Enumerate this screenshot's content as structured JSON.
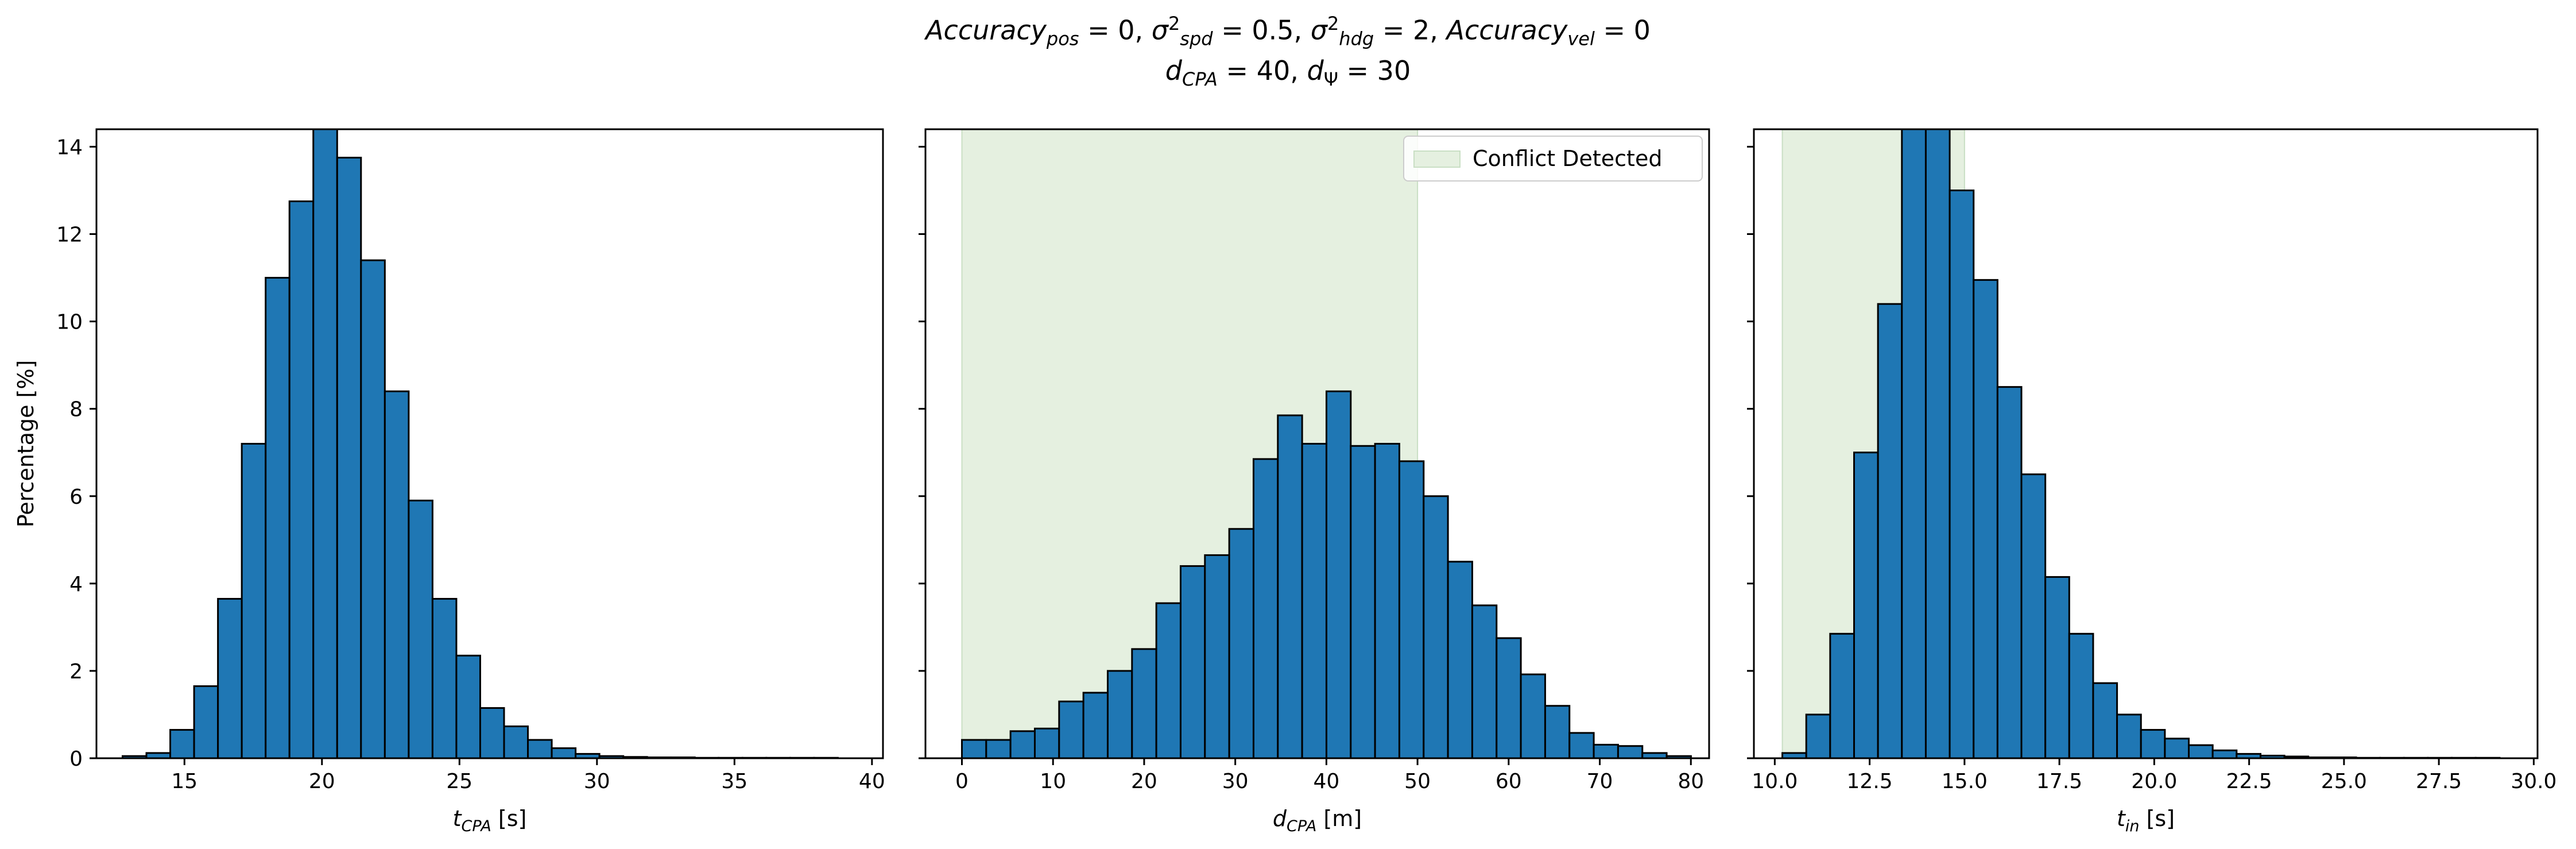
{
  "figure": {
    "title_line1": "Accuracy_pos = 0, σ²_spd = 0.5, σ²_hdg = 2, Accuracy_vel = 0",
    "title_line2": "d_CPA = 40, d_Ψ = 30",
    "legend_label": "Conflict Detected",
    "colors": {
      "bar_fill": "#1f77b4",
      "bar_edge": "#000000",
      "conflict_region": "#e5f0e0",
      "axes": "#000000"
    }
  },
  "chart_data": [
    {
      "type": "bar",
      "subtype": "histogram",
      "xlabel": "t_CPA [s]",
      "ylabel": "Percentage [%]",
      "xlim": [
        11.8,
        40.4
      ],
      "ylim": [
        0,
        14.4
      ],
      "xticks": [
        15,
        20,
        25,
        30,
        35,
        40
      ],
      "xtick_labels": [
        "15",
        "20",
        "25",
        "30",
        "35",
        "40"
      ],
      "yticks": [
        0,
        2,
        4,
        6,
        8,
        10,
        12,
        14
      ],
      "ytick_labels": [
        "0",
        "2",
        "4",
        "6",
        "8",
        "10",
        "12",
        "14"
      ],
      "bin_start": 12.75,
      "bin_width": 0.867,
      "values": [
        0.05,
        0.12,
        0.65,
        1.65,
        3.65,
        7.2,
        11.0,
        12.75,
        14.4,
        13.75,
        11.4,
        8.4,
        5.9,
        3.65,
        2.35,
        1.15,
        0.73,
        0.42,
        0.23,
        0.1,
        0.05,
        0.03,
        0.02,
        0.02,
        0.01,
        0.01,
        0.01,
        0.01,
        0.01,
        0.01
      ],
      "shaded_region": null,
      "legend": null
    },
    {
      "type": "bar",
      "subtype": "histogram",
      "xlabel": "d_CPA [m]",
      "ylabel": "",
      "xlim": [
        -4,
        82
      ],
      "ylim": [
        0,
        14.4
      ],
      "xticks": [
        0,
        10,
        20,
        30,
        40,
        50,
        60,
        70,
        80
      ],
      "xtick_labels": [
        "0",
        "10",
        "20",
        "30",
        "40",
        "50",
        "60",
        "70",
        "80"
      ],
      "yticks": [
        0,
        2,
        4,
        6,
        8,
        10,
        12,
        14
      ],
      "ytick_labels": [],
      "bin_start": 0,
      "bin_width": 2.667,
      "values": [
        0.42,
        0.42,
        0.62,
        0.68,
        1.3,
        1.5,
        2.0,
        2.5,
        3.55,
        4.4,
        4.65,
        5.25,
        6.85,
        7.85,
        7.2,
        8.4,
        7.15,
        7.2,
        6.8,
        6.0,
        4.5,
        3.5,
        2.75,
        1.92,
        1.2,
        0.58,
        0.31,
        0.28,
        0.12,
        0.05
      ],
      "shaded_region": [
        0,
        50
      ],
      "legend": {
        "label": "Conflict Detected",
        "position": "upper right"
      }
    },
    {
      "type": "bar",
      "subtype": "histogram",
      "xlabel": "t_in [s]",
      "ylabel": "",
      "xlim": [
        9.45,
        30.1
      ],
      "ylim": [
        0,
        14.4
      ],
      "xticks": [
        10.0,
        12.5,
        15.0,
        17.5,
        20.0,
        22.5,
        25.0,
        27.5,
        30.0
      ],
      "xtick_labels": [
        "10.0",
        "12.5",
        "15.0",
        "17.5",
        "20.0",
        "22.5",
        "25.0",
        "27.5",
        "30.0"
      ],
      "yticks": [
        0,
        2,
        4,
        6,
        8,
        10,
        12,
        14
      ],
      "ytick_labels": [],
      "bin_start": 10.2,
      "bin_width": 0.63,
      "values": [
        0.12,
        1.0,
        2.85,
        7.0,
        10.4,
        14.4,
        14.4,
        13.0,
        10.95,
        8.5,
        6.5,
        4.15,
        2.85,
        1.72,
        1.0,
        0.65,
        0.45,
        0.3,
        0.18,
        0.1,
        0.06,
        0.04,
        0.02,
        0.02,
        0.01,
        0.01,
        0.01,
        0.01,
        0.01,
        0.01
      ],
      "shaded_region": [
        10.2,
        15.0
      ],
      "legend": null
    }
  ]
}
